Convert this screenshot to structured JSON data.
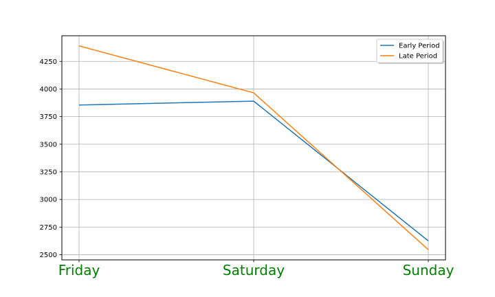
{
  "chart_data": {
    "type": "line",
    "categories": [
      "Friday",
      "Saturday",
      "Sunday"
    ],
    "series": [
      {
        "name": "Early Period",
        "values": [
          3855,
          3890,
          2625
        ],
        "color": "#1f77b4"
      },
      {
        "name": "Late Period",
        "values": [
          4390,
          3965,
          2545
        ],
        "color": "#ff7f0e"
      }
    ],
    "yticks": [
      2500,
      2750,
      3000,
      3250,
      3500,
      3750,
      4000,
      4250
    ],
    "ylim": [
      2453,
      4482
    ],
    "xtick_color": "#008000",
    "grid": true,
    "legend_position": "top-right",
    "title": "",
    "xlabel": "",
    "ylabel": ""
  }
}
